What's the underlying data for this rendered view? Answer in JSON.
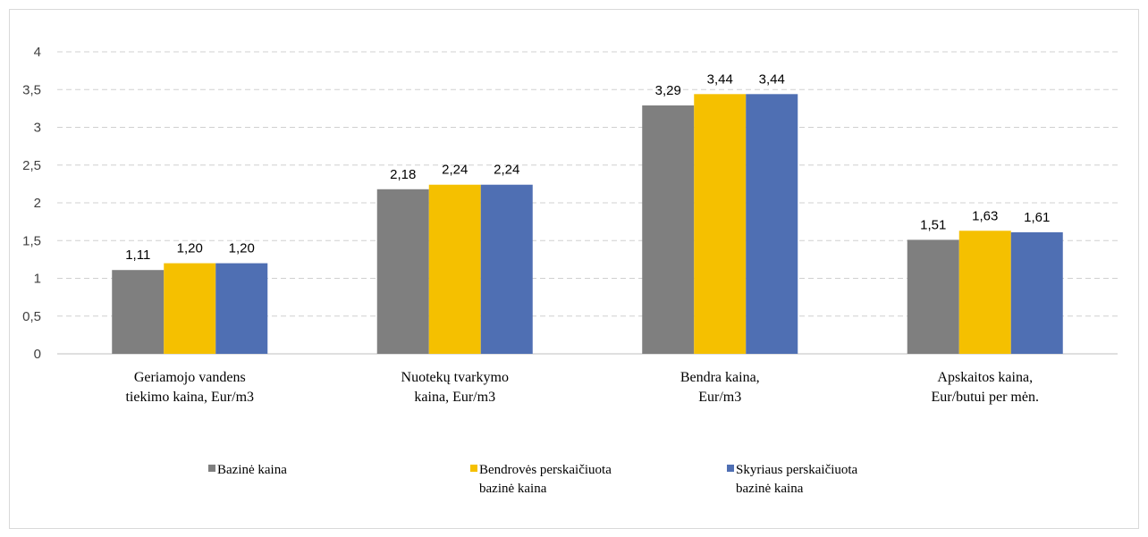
{
  "chart_data": {
    "type": "bar",
    "title": "",
    "xlabel": "",
    "ylabel": "",
    "ylim": [
      0,
      4
    ],
    "yticks": [
      "0",
      "0,5",
      "1",
      "1,5",
      "2",
      "2,5",
      "3",
      "3,5",
      "4"
    ],
    "grid": true,
    "legend_position": "bottom",
    "categories": [
      [
        "Geriamojo vandens",
        "tiekimo kaina, Eur/m3"
      ],
      [
        "Nuotekų tvarkymo",
        "kaina, Eur/m3"
      ],
      [
        "Bendra kaina,",
        "Eur/m3"
      ],
      [
        "Apskaitos kaina,",
        "Eur/butui per mėn."
      ]
    ],
    "series": [
      {
        "name": [
          "Bazinė kaina"
        ],
        "color": "#7f7f7f",
        "values": [
          1.11,
          2.18,
          3.29,
          1.51
        ],
        "labels": [
          "1,11",
          "2,18",
          "3,29",
          "1,51"
        ]
      },
      {
        "name": [
          "Bendrovės perskaičiuota",
          "bazinė kaina"
        ],
        "color": "#f5c000",
        "values": [
          1.2,
          2.24,
          3.44,
          1.63
        ],
        "labels": [
          "1,20",
          "2,24",
          "3,44",
          "1,63"
        ]
      },
      {
        "name": [
          "Skyriaus perskaičiuota",
          "bazinė kaina"
        ],
        "color": "#4f6fb3",
        "values": [
          1.2,
          2.24,
          3.44,
          1.61
        ],
        "labels": [
          "1,20",
          "2,24",
          "3,44",
          "1,61"
        ]
      }
    ]
  }
}
